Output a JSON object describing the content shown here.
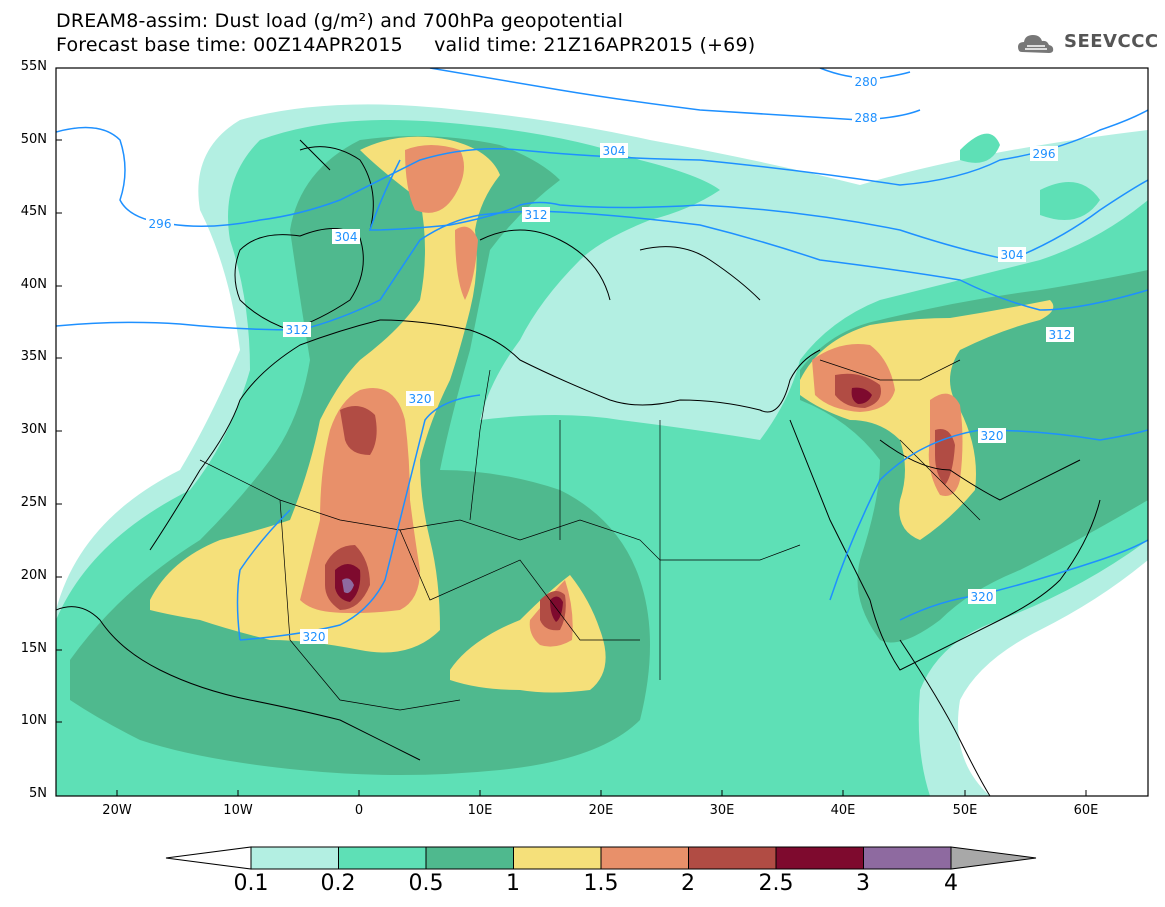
{
  "title": {
    "line1": "DREAM8-assim: Dust load (g/m²) and 700hPa geopotential",
    "line2": "Forecast base time: 00Z14APR2015     valid time: 21Z16APR2015 (+69)"
  },
  "logo": {
    "text": "SEEVCCC",
    "icon": "cloud-icon"
  },
  "axes": {
    "lat_labels": [
      "55N",
      "50N",
      "45N",
      "40N",
      "35N",
      "30N",
      "25N",
      "20N",
      "15N",
      "10N",
      "5N"
    ],
    "lon_labels": [
      "20W",
      "10W",
      "0",
      "10E",
      "20E",
      "30E",
      "40E",
      "50E",
      "60E"
    ]
  },
  "contours": {
    "color": "#1e90ff",
    "labels": [
      "280",
      "288",
      "296",
      "296",
      "304",
      "304",
      "304",
      "312",
      "312",
      "312",
      "320",
      "320",
      "320",
      "320"
    ]
  },
  "colorbar": {
    "levels": [
      "0.1",
      "0.2",
      "0.5",
      "1",
      "1.5",
      "2",
      "2.5",
      "3",
      "4"
    ],
    "colors": [
      "#b3efe2",
      "#5ee0b6",
      "#4fb98e",
      "#f5e07a",
      "#e8906a",
      "#b14c44",
      "#7e0a2e",
      "#8e6aa0"
    ],
    "under_color": "#ffffff",
    "over_color": "#a8a8a8"
  },
  "palette": {
    "land_outline": "#000000",
    "ocean": "#ffffff",
    "contour_line": "#1e90ff"
  }
}
